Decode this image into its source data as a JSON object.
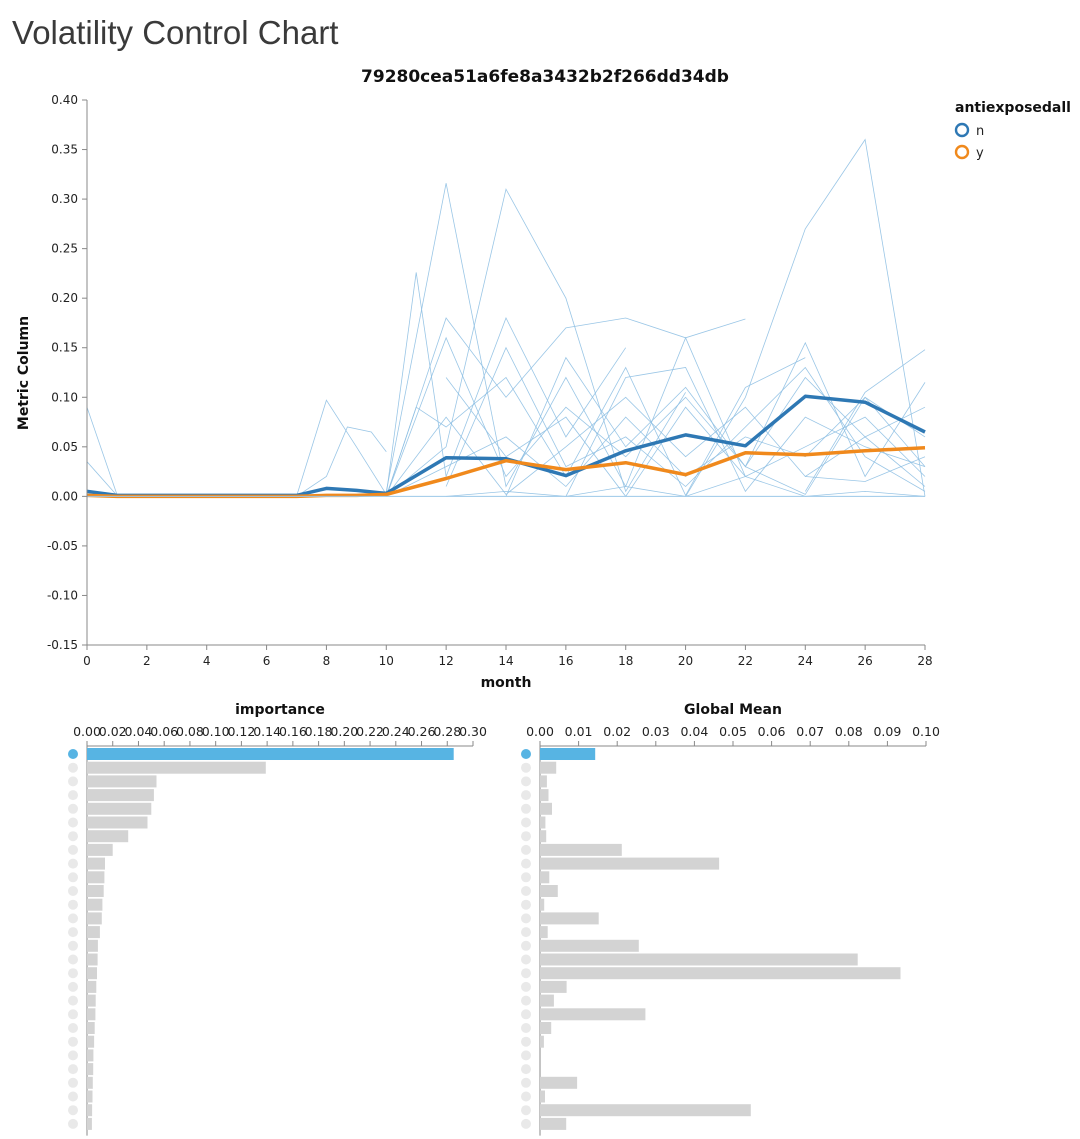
{
  "page": {
    "title": "Volatility Control Chart"
  },
  "colors": {
    "n": "#2e78b4",
    "y": "#f0891c",
    "thin": "#8fc0e3",
    "highlight": "#57b4e3",
    "bar": "#d3d3d3",
    "axis": "#888888",
    "dot": "#e9e9e9"
  },
  "chart_data": [
    {
      "type": "line",
      "title": "79280cea51a6fe8a3432b2f266dd34db",
      "xlabel": "month",
      "ylabel": "Metric Column",
      "xlim": [
        0,
        28
      ],
      "ylim": [
        -0.15,
        0.4
      ],
      "xticks": [
        0,
        2,
        4,
        6,
        8,
        10,
        12,
        14,
        16,
        18,
        20,
        22,
        24,
        26,
        28
      ],
      "yticks": [
        0.4,
        0.35,
        0.3,
        0.25,
        0.2,
        0.15,
        0.1,
        0.05,
        0.0,
        -0.05,
        -0.1,
        -0.15
      ],
      "ytick_labels": [
        "0.40",
        "0.35",
        "0.30",
        "0.25",
        "0.20",
        "0.15",
        "0.10",
        "0.05",
        "0.00",
        "-0.05",
        "-0.10",
        "-0.15"
      ],
      "legend": {
        "title": "antiexposedall",
        "position": "top-right",
        "entries": [
          "n",
          "y"
        ]
      },
      "series": [
        {
          "name": "n",
          "x": [
            0,
            1,
            2,
            3,
            4,
            5,
            6,
            7,
            8,
            9,
            10,
            12,
            14,
            16,
            18,
            20,
            22,
            24,
            26,
            28
          ],
          "values": [
            0.005,
            0.001,
            0.001,
            0.001,
            0.001,
            0.001,
            0.001,
            0.001,
            0.008,
            0.006,
            0.003,
            0.039,
            0.038,
            0.021,
            0.046,
            0.062,
            0.051,
            0.101,
            0.095,
            0.065
          ]
        },
        {
          "name": "y",
          "x": [
            0,
            1,
            2,
            3,
            4,
            5,
            6,
            7,
            8,
            9,
            10,
            12,
            14,
            16,
            18,
            20,
            22,
            24,
            26,
            28
          ],
          "values": [
            0.001,
            0.0,
            0.0,
            0.0,
            0.0,
            0.0,
            0.0,
            0.0,
            0.001,
            0.001,
            0.002,
            0.018,
            0.036,
            0.027,
            0.034,
            0.022,
            0.044,
            0.042,
            0.046,
            0.049
          ]
        }
      ],
      "background_series": [
        {
          "x": [
            0,
            1
          ],
          "values": [
            0.09,
            0.002
          ]
        },
        {
          "x": [
            0,
            1
          ],
          "values": [
            0.035,
            0.001
          ]
        },
        {
          "x": [
            7,
            8,
            9,
            10
          ],
          "values": [
            0.0,
            0.097,
            0.05,
            0.002
          ]
        },
        {
          "x": [
            7,
            8,
            8.7,
            9.5,
            10
          ],
          "values": [
            0.0,
            0.02,
            0.07,
            0.065,
            0.045
          ]
        },
        {
          "x": [
            10,
            11,
            12,
            14,
            16,
            18
          ],
          "values": [
            0.002,
            0.226,
            0.02,
            0.18,
            0.06,
            0.15
          ]
        },
        {
          "x": [
            10,
            12,
            14,
            16,
            18,
            20,
            22
          ],
          "values": [
            0.005,
            0.316,
            0.01,
            0.12,
            0.01,
            0.16,
            0.02
          ]
        },
        {
          "x": [
            10,
            12,
            14,
            16,
            18,
            20
          ],
          "values": [
            0.0,
            0.05,
            0.31,
            0.2,
            0.005,
            0.105
          ]
        },
        {
          "x": [
            10,
            12,
            14,
            16,
            18,
            20,
            22
          ],
          "values": [
            0.0,
            0.18,
            0.1,
            0.17,
            0.18,
            0.16,
            0.179
          ]
        },
        {
          "x": [
            10,
            11,
            12,
            14,
            16,
            18,
            20,
            22,
            24
          ],
          "values": [
            0.0,
            0.09,
            0.07,
            0.12,
            0.02,
            0.13,
            0.001,
            0.11,
            0.14
          ]
        },
        {
          "x": [
            10,
            12,
            14,
            16,
            18,
            20,
            22,
            24,
            26,
            28
          ],
          "values": [
            0.0,
            0.16,
            0.02,
            0.09,
            0.04,
            0.1,
            0.03,
            0.12,
            0.06,
            0.09
          ]
        },
        {
          "x": [
            10,
            12,
            14,
            16,
            18,
            20,
            22,
            24,
            26,
            28
          ],
          "values": [
            0.0,
            0.03,
            0.06,
            0.01,
            0.08,
            0.02,
            0.06,
            0.04,
            0.1,
            0.03
          ]
        },
        {
          "x": [
            10,
            12,
            14,
            16,
            18,
            20,
            22,
            24,
            26,
            28
          ],
          "values": [
            0.0,
            0.08,
            0.002,
            0.05,
            0.1,
            0.04,
            0.09,
            0.02,
            0.06,
            0.01
          ]
        },
        {
          "x": [
            12,
            14,
            16,
            18,
            20,
            22,
            24,
            26,
            28
          ],
          "values": [
            0.01,
            0.15,
            0.03,
            0.06,
            0.01,
            0.07,
            0.13,
            0.04,
            0.005
          ]
        },
        {
          "x": [
            12,
            14,
            16,
            18,
            20,
            22,
            24,
            26,
            28
          ],
          "values": [
            0.12,
            0.04,
            0.08,
            0.0,
            0.09,
            0.02,
            0.05,
            0.08,
            0.02
          ]
        },
        {
          "x": [
            14,
            16,
            18,
            20,
            22,
            24,
            26,
            28
          ],
          "values": [
            0.0,
            0.14,
            0.05,
            0.11,
            0.03,
            0.155,
            0.02,
            0.115
          ]
        },
        {
          "x": [
            16,
            18,
            20,
            22,
            24,
            26,
            28
          ],
          "values": [
            0.0,
            0.12,
            0.13,
            0.005,
            0.08,
            0.05,
            0.03
          ]
        },
        {
          "x": [
            20,
            22,
            24,
            26,
            28
          ],
          "values": [
            0.0,
            0.1,
            0.27,
            0.36,
            0.0
          ]
        },
        {
          "x": [
            22,
            24,
            26,
            28
          ],
          "values": [
            0.03,
            0.002,
            0.1,
            0.06
          ]
        },
        {
          "x": [
            24,
            26,
            28
          ],
          "values": [
            0.005,
            0.105,
            0.148
          ]
        },
        {
          "x": [
            24,
            26,
            28
          ],
          "values": [
            0.02,
            0.015,
            0.04
          ]
        },
        {
          "x": [
            12,
            14,
            16,
            18,
            20,
            22,
            24,
            26,
            28
          ],
          "values": [
            0.0,
            0.005,
            0.0,
            0.01,
            0.0,
            0.02,
            0.0,
            0.005,
            0.0
          ]
        }
      ]
    },
    {
      "type": "bar",
      "orientation": "horizontal",
      "title": "importance",
      "xlim": [
        0,
        0.3
      ],
      "xtick_labels": [
        "0.00",
        "0.02",
        "0.04",
        "0.06",
        "0.08",
        "0.10",
        "0.12",
        "0.14",
        "0.16",
        "0.18",
        "0.20",
        "0.22",
        "0.24",
        "0.26",
        "0.28",
        "0.30"
      ],
      "highlight_index": 0,
      "values": [
        0.285,
        0.139,
        0.054,
        0.052,
        0.05,
        0.047,
        0.032,
        0.02,
        0.014,
        0.0135,
        0.013,
        0.012,
        0.0115,
        0.01,
        0.0085,
        0.0082,
        0.0078,
        0.0072,
        0.0068,
        0.0065,
        0.006,
        0.0055,
        0.005,
        0.0048,
        0.0045,
        0.0043,
        0.004,
        0.0038
      ]
    },
    {
      "type": "bar",
      "orientation": "horizontal",
      "title": "Global Mean",
      "xlim": [
        0,
        0.1
      ],
      "xtick_labels": [
        "0.00",
        "0.01",
        "0.02",
        "0.03",
        "0.04",
        "0.05",
        "0.06",
        "0.07",
        "0.08",
        "0.09",
        "0.10"
      ],
      "highlight_index": 0,
      "values": [
        0.0143,
        0.0042,
        0.0018,
        0.0022,
        0.0031,
        0.0014,
        0.0016,
        0.0212,
        0.0464,
        0.0024,
        0.0046,
        0.0011,
        0.0152,
        0.002,
        0.0256,
        0.0823,
        0.0934,
        0.0069,
        0.0036,
        0.0273,
        0.0029,
        0.001,
        0.0,
        0.0,
        0.0096,
        0.0013,
        0.0546,
        0.0068
      ]
    }
  ]
}
